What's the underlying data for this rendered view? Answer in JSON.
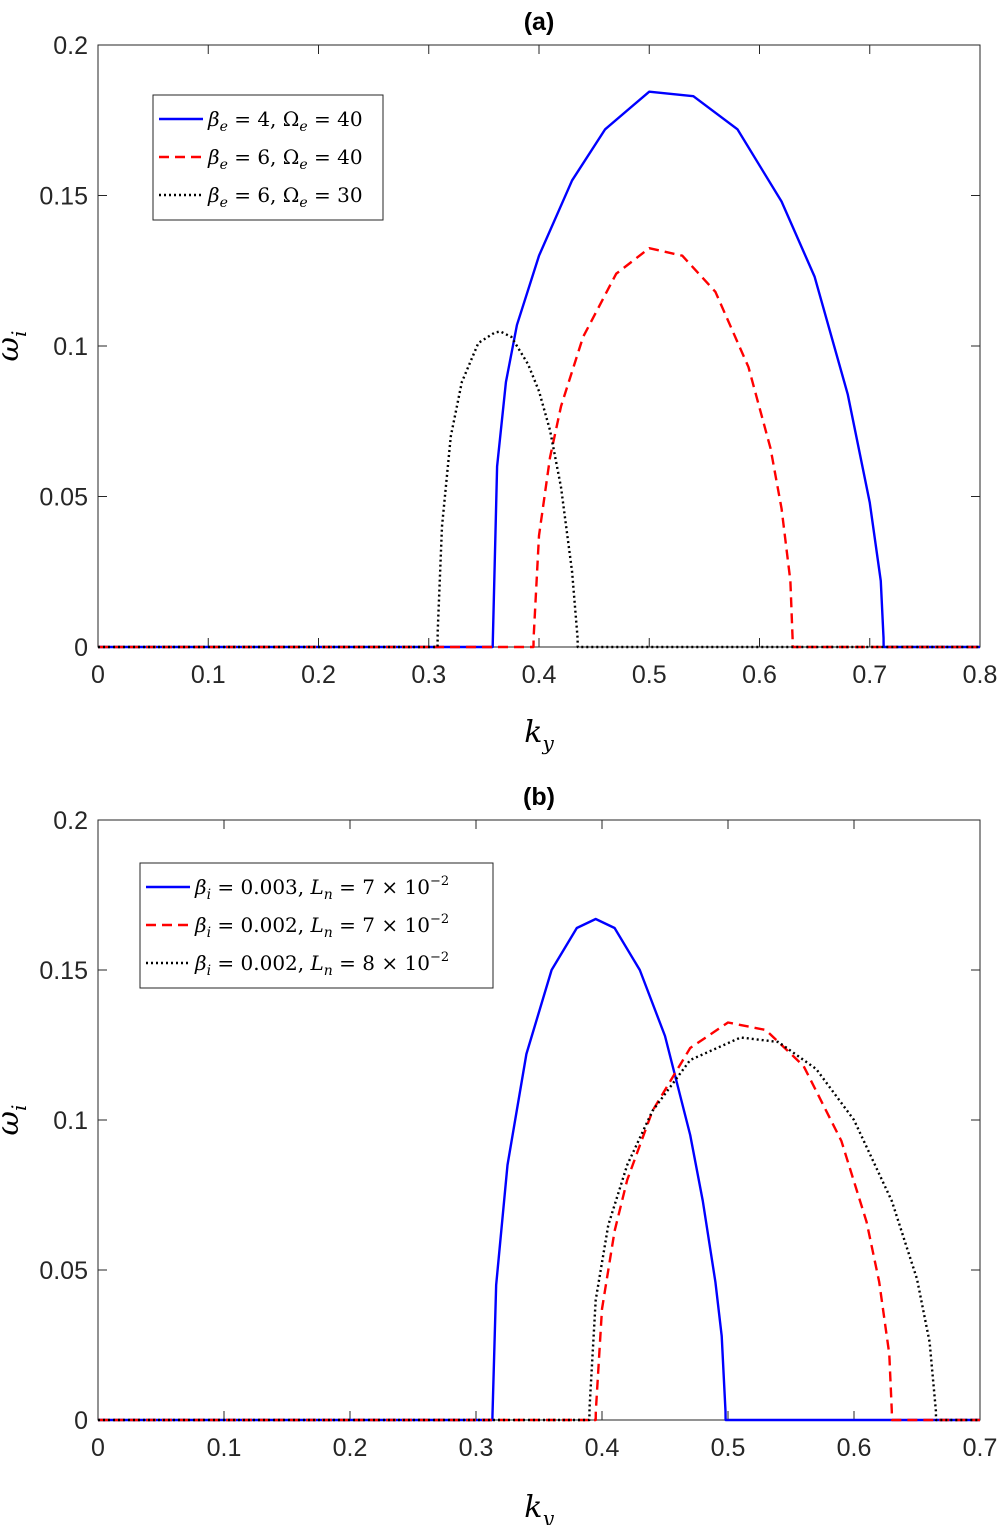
{
  "chart_data": [
    {
      "type": "line",
      "title": "(a)",
      "xlabel": {
        "base": "k",
        "sub": "y"
      },
      "ylabel": {
        "base": "ω",
        "sub": "i"
      },
      "xlim": [
        0,
        0.8
      ],
      "ylim": [
        0,
        0.2
      ],
      "xticks": [
        "0",
        "0.1",
        "0.2",
        "0.3",
        "0.4",
        "0.5",
        "0.6",
        "0.7",
        "0.8"
      ],
      "yticks": [
        "0",
        "0.05",
        "0.1",
        "0.15",
        "0.2"
      ],
      "grid": false,
      "legend_position": "top-left",
      "series": [
        {
          "name": "βe = 4, Ωe = 40",
          "legend": {
            "sym1": "β",
            "sub1": "e",
            "val1": " = 4, ",
            "sym2": "Ω",
            "sub2": "e",
            "val2": " = 40"
          },
          "color": "#0000ff",
          "dash": "solid",
          "x": [
            0,
            0.358,
            0.3581,
            0.362,
            0.37,
            0.38,
            0.4,
            0.43,
            0.46,
            0.5,
            0.54,
            0.58,
            0.62,
            0.65,
            0.68,
            0.7,
            0.71,
            0.7125,
            0.7126,
            0.8
          ],
          "y": [
            0,
            0,
            0.002,
            0.06,
            0.088,
            0.107,
            0.13,
            0.155,
            0.172,
            0.1845,
            0.183,
            0.172,
            0.148,
            0.123,
            0.084,
            0.048,
            0.022,
            0.003,
            0,
            0
          ]
        },
        {
          "name": "βe = 6, Ωe = 40",
          "legend": {
            "sym1": "β",
            "sub1": "e",
            "val1": " = 6, ",
            "sym2": "Ω",
            "sub2": "e",
            "val2": " = 40"
          },
          "color": "#ff0000",
          "dash": "dashed",
          "x": [
            0,
            0.395,
            0.3951,
            0.4,
            0.41,
            0.42,
            0.44,
            0.47,
            0.5,
            0.53,
            0.56,
            0.59,
            0.61,
            0.62,
            0.628,
            0.63,
            0.6301,
            0.8
          ],
          "y": [
            0,
            0,
            0.003,
            0.037,
            0.063,
            0.08,
            0.103,
            0.124,
            0.1325,
            0.13,
            0.118,
            0.093,
            0.066,
            0.046,
            0.022,
            0.003,
            0,
            0
          ]
        },
        {
          "name": "βe = 6, Ωe = 30",
          "legend": {
            "sym1": "β",
            "sub1": "e",
            "val1": " = 6, ",
            "sym2": "Ω",
            "sub2": "e",
            "val2": " = 30"
          },
          "color": "#000000",
          "dash": "dotted",
          "x": [
            0,
            0.308,
            0.3081,
            0.312,
            0.32,
            0.33,
            0.345,
            0.36,
            0.365,
            0.375,
            0.39,
            0.4,
            0.41,
            0.42,
            0.43,
            0.435,
            0.4351,
            0.8
          ],
          "y": [
            0,
            0,
            0.005,
            0.04,
            0.07,
            0.088,
            0.101,
            0.1045,
            0.1048,
            0.103,
            0.094,
            0.085,
            0.072,
            0.053,
            0.025,
            0.003,
            0,
            0
          ]
        }
      ]
    },
    {
      "type": "line",
      "title": "(b)",
      "xlabel": {
        "base": "k",
        "sub": "y"
      },
      "ylabel": {
        "base": "ω",
        "sub": "i"
      },
      "xlim": [
        0,
        0.7
      ],
      "ylim": [
        0,
        0.2
      ],
      "xticks": [
        "0",
        "0.1",
        "0.2",
        "0.3",
        "0.4",
        "0.5",
        "0.6",
        "0.7"
      ],
      "yticks": [
        "0",
        "0.05",
        "0.1",
        "0.15",
        "0.2"
      ],
      "grid": false,
      "legend_position": "top-left",
      "series": [
        {
          "name": "βi = 0.003, Ln = 7 × 10^-2",
          "legend": {
            "sym1": "β",
            "sub1": "i",
            "val1": " = 0.003, ",
            "sym2": "L",
            "sub2": "n",
            "val2": " = 7 × 10",
            "sup": "−2"
          },
          "color": "#0000ff",
          "dash": "solid",
          "x": [
            0,
            0.313,
            0.3131,
            0.316,
            0.325,
            0.34,
            0.36,
            0.38,
            0.395,
            0.41,
            0.43,
            0.45,
            0.47,
            0.48,
            0.49,
            0.495,
            0.498,
            0.4981,
            0.7
          ],
          "y": [
            0,
            0,
            0.002,
            0.045,
            0.085,
            0.122,
            0.15,
            0.164,
            0.167,
            0.164,
            0.15,
            0.128,
            0.095,
            0.073,
            0.046,
            0.028,
            0.003,
            0,
            0
          ]
        },
        {
          "name": "βi = 0.002, Ln = 7 × 10^-2",
          "legend": {
            "sym1": "β",
            "sub1": "i",
            "val1": " = 0.002, ",
            "sym2": "L",
            "sub2": "n",
            "val2": " = 7 × 10",
            "sup": "−2"
          },
          "color": "#ff0000",
          "dash": "dashed",
          "x": [
            0,
            0.395,
            0.3951,
            0.4,
            0.41,
            0.42,
            0.44,
            0.47,
            0.5,
            0.53,
            0.56,
            0.59,
            0.61,
            0.62,
            0.628,
            0.63,
            0.6301,
            0.7
          ],
          "y": [
            0,
            0,
            0.003,
            0.037,
            0.063,
            0.08,
            0.103,
            0.124,
            0.1325,
            0.13,
            0.118,
            0.093,
            0.066,
            0.046,
            0.022,
            0.003,
            0,
            0
          ]
        },
        {
          "name": "βi = 0.002, Ln = 8 × 10^-2",
          "legend": {
            "sym1": "β",
            "sub1": "i",
            "val1": " = 0.002, ",
            "sym2": "L",
            "sub2": "n",
            "val2": " = 8 × 10",
            "sup": "−2"
          },
          "color": "#000000",
          "dash": "dotted",
          "x": [
            0,
            0.39,
            0.3901,
            0.395,
            0.405,
            0.42,
            0.44,
            0.47,
            0.51,
            0.54,
            0.57,
            0.6,
            0.63,
            0.65,
            0.66,
            0.665,
            0.6651,
            0.7
          ],
          "y": [
            0,
            0,
            0.004,
            0.04,
            0.065,
            0.085,
            0.103,
            0.12,
            0.1275,
            0.126,
            0.117,
            0.1,
            0.073,
            0.047,
            0.026,
            0.003,
            0,
            0
          ]
        }
      ]
    }
  ]
}
